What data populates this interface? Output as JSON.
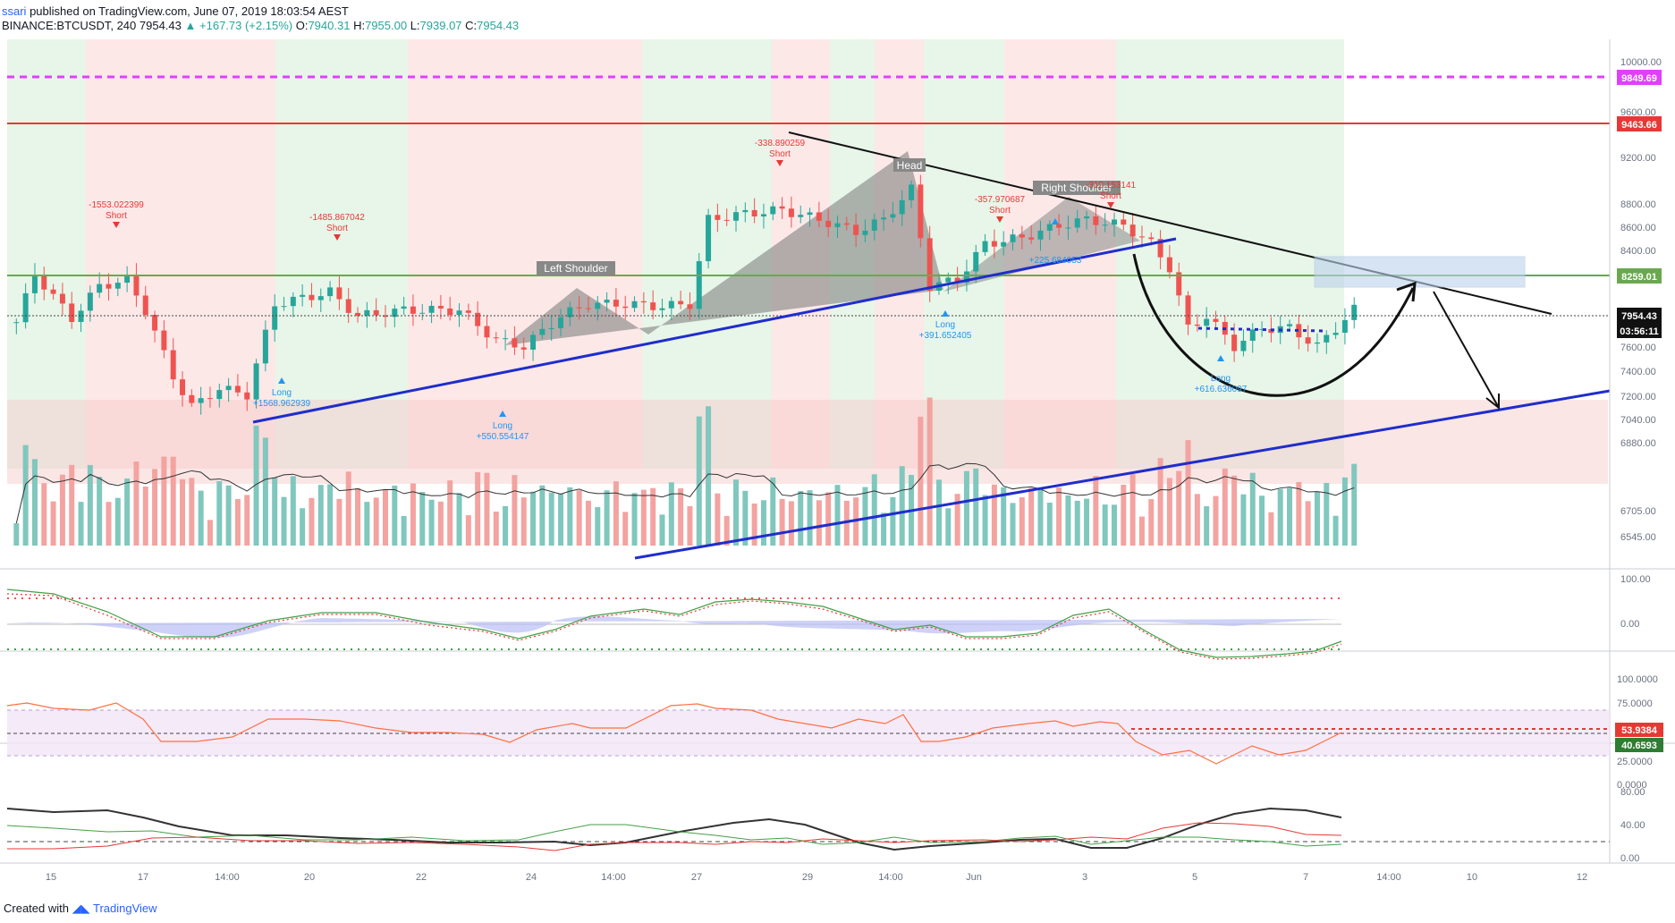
{
  "header": {
    "published_user": "ssari",
    "published_text": "published on TradingView.com, June 07, 2019 18:03:54 AEST",
    "symbol": "BINANCE:BTCUSDT, 240",
    "last": "7954.43",
    "change": "+167.73 (+2.15%)",
    "ohlc_o_label": "O:",
    "ohlc_o": "7940.31",
    "ohlc_h_label": "H:",
    "ohlc_h": "7955.00",
    "ohlc_l_label": "L:",
    "ohlc_l": "7939.07",
    "ohlc_c_label": "C:",
    "ohlc_c": "7954.43"
  },
  "footer": {
    "created_with": "Created with",
    "brand": "TradingView"
  },
  "colors": {
    "up": "#26a69a",
    "down": "#ef5350",
    "volume_up": "#80c7be",
    "volume_down": "#f3a3a0",
    "trendline": "#1f2dcc",
    "resistance_red": "#e53935",
    "magenta": "#e040fb",
    "green_level": "#6aa84f",
    "bg_green": "#e8f5e9",
    "bg_red": "#fde8e8"
  },
  "x_axis_labels": [
    "15",
    "17",
    "14:00",
    "20",
    "22",
    "24",
    "14:00",
    "27",
    "29",
    "14:00",
    "Jun",
    "3",
    "5",
    "7",
    "14:00",
    "10",
    "12"
  ],
  "price_axis_labels": [
    "10000.00",
    "9600.00",
    "9200.00",
    "8800.00",
    "8600.00",
    "8400.00",
    "7600.00",
    "7400.00",
    "7200.00",
    "7040.00",
    "6880.00",
    "6705.00",
    "6545.00"
  ],
  "price_badges": {
    "magenta_line": "9849.69",
    "red_line": "9463.66",
    "green_line": "8259.01",
    "last_price": "7954.43",
    "countdown": "03:56:11"
  },
  "pattern_labels": {
    "left_shoulder": "Left Shoulder",
    "head": "Head",
    "right_shoulder": "Right Shoulder"
  },
  "signals": [
    {
      "type": "Short",
      "value": "-1553.022399"
    },
    {
      "type": "Short",
      "value": "-1485.867042"
    },
    {
      "type": "Short",
      "value": "-338.890259"
    },
    {
      "type": "Short",
      "value": "-357.970687"
    },
    {
      "type": "Short",
      "value": "-312.153141"
    },
    {
      "type": "Long",
      "value": "+1568.962939"
    },
    {
      "type": "Long",
      "value": "+550.554147"
    },
    {
      "type": "Long",
      "value": "+391.652405"
    },
    {
      "type": "Long",
      "value": "+225.684053"
    },
    {
      "type": "Long",
      "value": "+616.636097"
    }
  ],
  "panes": {
    "momentum_axis": [
      "100.00",
      "0.00"
    ],
    "rsi_axis": [
      "100.0000",
      "75.0000",
      "25.0000",
      "0.0000"
    ],
    "rsi_values": [
      "53.9384",
      "40.6593"
    ],
    "dmi_axis": [
      "80.00",
      "40.00",
      "0.00"
    ]
  },
  "chart_data": {
    "type": "candlestick",
    "symbol": "BTCUSDT",
    "timeframe": "240",
    "ylim": [
      6545,
      10080
    ],
    "levels": [
      9849.69,
      9463.66,
      8259.01
    ],
    "last_price": 7954.43,
    "close_path": [
      {
        "x": "May 14 12:00",
        "y": 7850
      },
      {
        "x": "May 14 20:00",
        "y": 8250
      },
      {
        "x": "May 15 12:00",
        "y": 7880
      },
      {
        "x": "May 16 00:00",
        "y": 8150
      },
      {
        "x": "May 16 12:00",
        "y": 8200
      },
      {
        "x": "May 16 20:00",
        "y": 7950
      },
      {
        "x": "May 17 08:00",
        "y": 7400
      },
      {
        "x": "May 17 16:00",
        "y": 7150
      },
      {
        "x": "May 18 04:00",
        "y": 7300
      },
      {
        "x": "May 18 16:00",
        "y": 7250
      },
      {
        "x": "May 19 04:00",
        "y": 8000
      },
      {
        "x": "May 19 16:00",
        "y": 8050
      },
      {
        "x": "May 20 04:00",
        "y": 8100
      },
      {
        "x": "May 20 16:00",
        "y": 7900
      },
      {
        "x": "May 21 12:00",
        "y": 7950
      },
      {
        "x": "May 22 12:00",
        "y": 7950
      },
      {
        "x": "May 23 04:00",
        "y": 7700
      },
      {
        "x": "May 23 16:00",
        "y": 7650
      },
      {
        "x": "May 24 08:00",
        "y": 7900
      },
      {
        "x": "May 24 20:00",
        "y": 8000
      },
      {
        "x": "May 25 12:00",
        "y": 8000
      },
      {
        "x": "May 26 04:00",
        "y": 7980
      },
      {
        "x": "May 26 16:00",
        "y": 8000
      },
      {
        "x": "May 27 00:00",
        "y": 8700
      },
      {
        "x": "May 27 16:00",
        "y": 8750
      },
      {
        "x": "May 28 08:00",
        "y": 8780
      },
      {
        "x": "May 29 00:00",
        "y": 8700
      },
      {
        "x": "May 29 16:00",
        "y": 8600
      },
      {
        "x": "May 30 04:00",
        "y": 8700
      },
      {
        "x": "May 30 16:00",
        "y": 8950
      },
      {
        "x": "May 31 00:00",
        "y": 8150
      },
      {
        "x": "May 31 12:00",
        "y": 8200
      },
      {
        "x": "Jun 1 00:00",
        "y": 8500
      },
      {
        "x": "Jun 1 16:00",
        "y": 8550
      },
      {
        "x": "Jun 2 08:00",
        "y": 8650
      },
      {
        "x": "Jun 2 20:00",
        "y": 8700
      },
      {
        "x": "Jun 3 12:00",
        "y": 8650
      },
      {
        "x": "Jun 4 00:00",
        "y": 8500
      },
      {
        "x": "Jun 4 08:00",
        "y": 8300
      },
      {
        "x": "Jun 4 16:00",
        "y": 7800
      },
      {
        "x": "Jun 5 00:00",
        "y": 7900
      },
      {
        "x": "Jun 5 12:00",
        "y": 7650
      },
      {
        "x": "Jun 6 00:00",
        "y": 7800
      },
      {
        "x": "Jun 6 12:00",
        "y": 7800
      },
      {
        "x": "Jun 7 00:00",
        "y": 7650
      },
      {
        "x": "Jun 7 08:00",
        "y": 7800
      },
      {
        "x": "Jun 7 16:00",
        "y": 7954.43
      }
    ]
  }
}
